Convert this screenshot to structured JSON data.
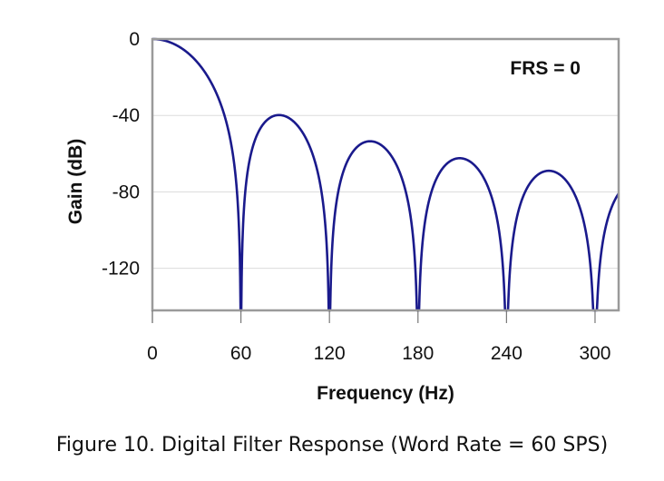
{
  "chart_data": {
    "type": "line",
    "title": "",
    "annotation": "FRS = 0",
    "xlabel": "Frequency (Hz)",
    "ylabel": "Gain (dB)",
    "xlim": [
      0,
      316
    ],
    "ylim": [
      -142,
      0
    ],
    "xticks": [
      "0",
      "60",
      "120",
      "180",
      "240",
      "300"
    ],
    "xtick_values": [
      0,
      60,
      120,
      180,
      240,
      300
    ],
    "yticks": [
      "0",
      "-40",
      "-80",
      "-120"
    ],
    "ytick_values": [
      0,
      -40,
      -80,
      -120
    ],
    "grid": "horizontal",
    "series": [
      {
        "name": "Gain",
        "color": "#1a1a8c",
        "model": "sinc^3, nulls at multiples of 60 Hz",
        "null_spacing_hz": 60,
        "order": 3,
        "nulls_hz": [
          60,
          120,
          180,
          240,
          300
        ],
        "lobe_peaks": [
          {
            "x": 0,
            "y": 0
          },
          {
            "x": 86,
            "y": -40
          },
          {
            "x": 148,
            "y": -53
          },
          {
            "x": 209,
            "y": -62
          },
          {
            "x": 269,
            "y": -68
          }
        ]
      }
    ]
  },
  "caption": "Figure 10. Digital Filter Response (Word Rate = 60 SPS)"
}
